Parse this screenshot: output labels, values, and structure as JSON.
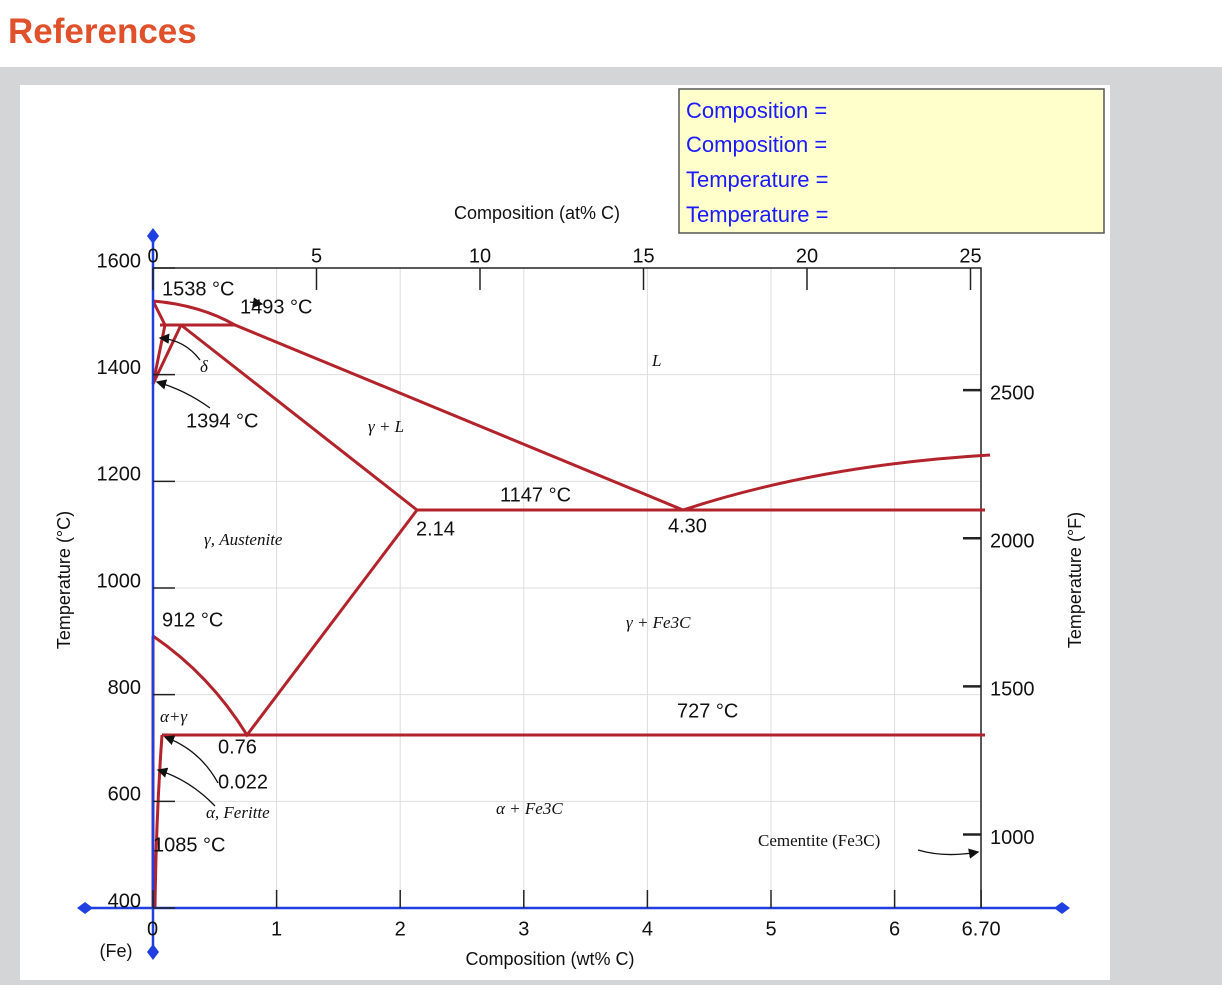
{
  "header": {
    "title": "References"
  },
  "readout": [
    "Composition =",
    "Composition =",
    "Temperature =",
    "Temperature ="
  ],
  "diagram": {
    "bottom_axis": {
      "title": "Composition (wt% C)",
      "ticks": [
        0,
        1,
        2,
        3,
        4,
        5,
        6,
        {
          "value": 6.7,
          "label": "6.70"
        }
      ],
      "end_label": "(Fe)"
    },
    "top_axis": {
      "title": "Composition (at% C)",
      "ticks": [
        0,
        5,
        10,
        15,
        20,
        25
      ]
    },
    "left_axis": {
      "title": "Temperature (°C)",
      "ticks": [
        400,
        600,
        800,
        1000,
        1200,
        1400,
        1600
      ]
    },
    "right_axis": {
      "title": "Temperature (°F)",
      "ticks": [
        1000,
        1500,
        2000,
        2500
      ]
    },
    "annotations": [
      "1538 °C",
      "1493 °C",
      "δ",
      "1394 °C",
      "γ + L",
      "L",
      "1147 °C",
      "2.14",
      "4.30",
      "γ, Austenite",
      "912 °C",
      "γ + Fe3C",
      "α+γ",
      "727 °C",
      "0.76",
      "0.022",
      "α, Feritte",
      "α + Fe3C",
      "1085 °C",
      "Cementite (Fe3C)"
    ]
  }
}
